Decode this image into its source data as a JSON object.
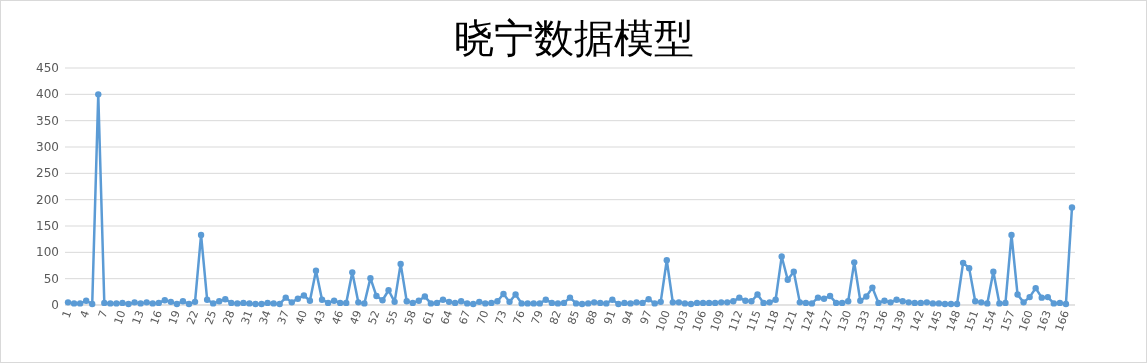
{
  "chart_data": {
    "type": "line",
    "title": "晓宁数据模型",
    "categories": [
      "1",
      null,
      null,
      "4",
      null,
      null,
      "7",
      null,
      null,
      "10",
      null,
      null,
      "13",
      null,
      null,
      "16",
      null,
      null,
      "19",
      null,
      null,
      "22",
      null,
      null,
      "25",
      null,
      null,
      "28",
      null,
      null,
      "31",
      null,
      null,
      "34",
      null,
      null,
      "37",
      null,
      null,
      "40",
      null,
      null,
      "43",
      null,
      null,
      "46",
      null,
      null,
      "49",
      null,
      null,
      "52",
      null,
      null,
      "55",
      null,
      null,
      "58",
      null,
      null,
      "61",
      null,
      null,
      "64",
      null,
      null,
      "67",
      null,
      null,
      "70",
      null,
      null,
      "73",
      null,
      null,
      "76",
      null,
      null,
      "79",
      null,
      null,
      "82",
      null,
      null,
      "85",
      null,
      null,
      "88",
      null,
      null,
      "91",
      null,
      null,
      "94",
      null,
      null,
      "97",
      null,
      null,
      "100",
      null,
      null,
      "103",
      null,
      null,
      "106",
      null,
      null,
      "109",
      null,
      null,
      "112",
      null,
      null,
      "115",
      null,
      null,
      "118",
      null,
      null,
      "121",
      null,
      null,
      "124",
      null,
      null,
      "127",
      null,
      null,
      "130",
      null,
      null,
      "133",
      null,
      null,
      "136",
      null,
      null,
      "139",
      null,
      null,
      "142",
      null,
      null,
      "145",
      null,
      null,
      "148",
      null,
      null,
      "151",
      null,
      null,
      "154",
      null,
      null,
      "157",
      null,
      null,
      "160",
      null,
      null,
      "163",
      null,
      null,
      "166",
      null
    ],
    "series": [
      {
        "color": "#5b9bd5",
        "values": [
          5,
          3,
          3,
          8,
          2,
          400,
          4,
          3,
          3,
          4,
          2,
          5,
          3,
          5,
          3,
          4,
          9,
          6,
          2,
          7,
          2,
          6,
          133,
          10,
          3,
          7,
          11,
          4,
          3,
          4,
          3,
          2,
          2,
          4,
          3,
          2,
          14,
          5,
          12,
          18,
          8,
          65,
          10,
          4,
          8,
          4,
          4,
          62,
          5,
          3,
          51,
          17,
          9,
          28,
          6,
          78,
          7,
          4,
          8,
          16,
          3,
          4,
          10,
          6,
          4,
          7,
          3,
          2,
          6,
          3,
          4,
          7,
          21,
          6,
          20,
          3,
          3,
          3,
          3,
          10,
          4,
          3,
          4,
          14,
          3,
          2,
          3,
          5,
          4,
          3,
          10,
          2,
          4,
          3,
          5,
          4,
          11,
          3,
          6,
          85,
          5,
          5,
          3,
          2,
          4,
          4,
          4,
          4,
          5,
          5,
          7,
          14,
          8,
          7,
          20,
          4,
          5,
          10,
          92,
          48,
          63,
          5,
          4,
          3,
          14,
          12,
          17,
          4,
          4,
          7,
          81,
          8,
          16,
          33,
          4,
          8,
          5,
          10,
          7,
          5,
          4,
          4,
          5,
          3,
          3,
          2,
          2,
          2,
          80,
          70,
          7,
          5,
          3,
          63,
          3,
          4,
          133,
          20,
          5,
          15,
          32,
          14,
          15,
          3,
          4,
          2,
          185
        ]
      }
    ],
    "ylim": [
      0,
      450
    ],
    "yticks": [
      0,
      50,
      100,
      150,
      200,
      250,
      300,
      350,
      400,
      450
    ],
    "grid": "y",
    "marker": "circle",
    "line_style": "solid"
  }
}
